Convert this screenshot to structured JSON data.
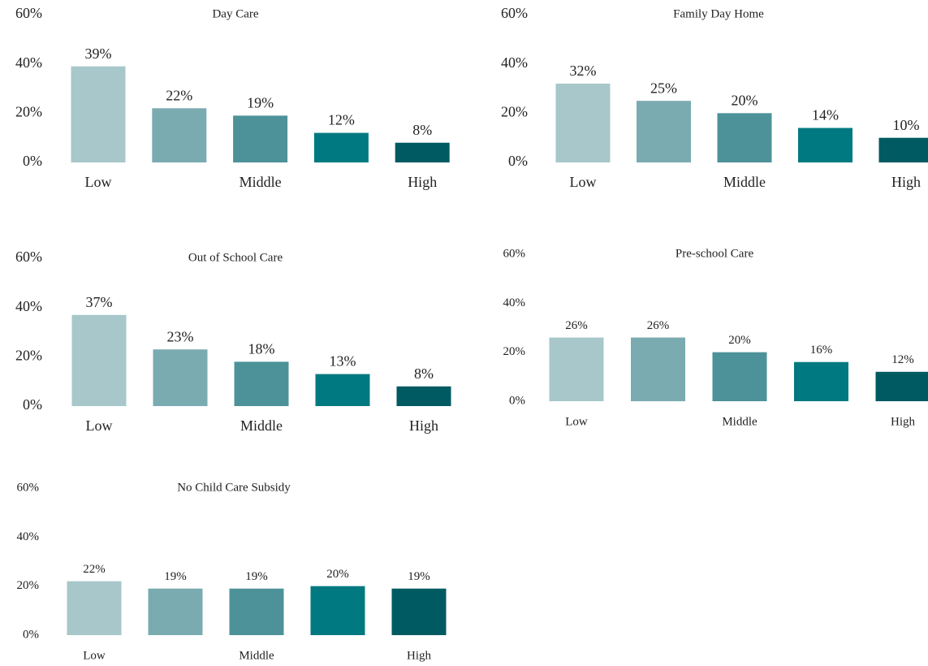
{
  "chart_data": [
    {
      "type": "bar",
      "title": "Day Care",
      "categories": [
        "Low",
        null,
        "Middle",
        null,
        "High"
      ],
      "values": [
        39,
        22,
        19,
        12,
        8
      ],
      "value_labels": [
        "39%",
        "22%",
        "19%",
        "12%",
        "8%"
      ],
      "colors": [
        "#a7c7ca",
        "#7aabb0",
        "#4d9299",
        "#007a80",
        "#005a62"
      ],
      "ylim": [
        0,
        60
      ],
      "yticks": [
        {
          "value": 0,
          "label": "0%"
        },
        {
          "value": 20,
          "label": "20%"
        },
        {
          "value": 40,
          "label": "40%"
        },
        {
          "value": 60,
          "label": "60%"
        }
      ]
    },
    {
      "type": "bar",
      "title": "Family Day Home",
      "categories": [
        "Low",
        null,
        "Middle",
        null,
        "High"
      ],
      "values": [
        32,
        25,
        20,
        14,
        10
      ],
      "value_labels": [
        "32%",
        "25%",
        "20%",
        "14%",
        "10%"
      ],
      "colors": [
        "#a7c7ca",
        "#7aabb0",
        "#4d9299",
        "#007a80",
        "#005a62"
      ],
      "ylim": [
        0,
        60
      ],
      "yticks": [
        {
          "value": 0,
          "label": "0%"
        },
        {
          "value": 20,
          "label": "20%"
        },
        {
          "value": 40,
          "label": "40%"
        },
        {
          "value": 60,
          "label": "60%"
        }
      ]
    },
    {
      "type": "bar",
      "title": "Out of School Care",
      "categories": [
        "Low",
        null,
        "Middle",
        null,
        "High"
      ],
      "values": [
        37,
        23,
        18,
        13,
        8
      ],
      "value_labels": [
        "37%",
        "23%",
        "18%",
        "13%",
        "8%"
      ],
      "colors": [
        "#a7c7ca",
        "#7aabb0",
        "#4d9299",
        "#007a80",
        "#005a62"
      ],
      "ylim": [
        0,
        60
      ],
      "yticks": [
        {
          "value": 0,
          "label": "0%"
        },
        {
          "value": 20,
          "label": "20%"
        },
        {
          "value": 40,
          "label": "40%"
        },
        {
          "value": 60,
          "label": "60%"
        }
      ]
    },
    {
      "type": "bar",
      "title": "Pre-school Care",
      "categories": [
        "Low",
        null,
        "Middle",
        null,
        "High"
      ],
      "values": [
        26,
        26,
        20,
        16,
        12
      ],
      "value_labels": [
        "26%",
        "26%",
        "20%",
        "16%",
        "12%"
      ],
      "colors": [
        "#a7c7ca",
        "#7aabb0",
        "#4d9299",
        "#007a80",
        "#005a62"
      ],
      "ylim": [
        0,
        60
      ],
      "yticks": [
        {
          "value": 0,
          "label": "0%"
        },
        {
          "value": 20,
          "label": "20%"
        },
        {
          "value": 40,
          "label": "40%"
        },
        {
          "value": 60,
          "label": "60%"
        }
      ]
    },
    {
      "type": "bar",
      "title": "No Child Care Subsidy",
      "categories": [
        "Low",
        null,
        "Middle",
        null,
        "High"
      ],
      "values": [
        22,
        19,
        19,
        20,
        19
      ],
      "value_labels": [
        "22%",
        "19%",
        "19%",
        "20%",
        "19%"
      ],
      "colors": [
        "#a7c7ca",
        "#7aabb0",
        "#4d9299",
        "#007a80",
        "#005a62"
      ],
      "ylim": [
        0,
        60
      ],
      "yticks": [
        {
          "value": 0,
          "label": "0%"
        },
        {
          "value": 20,
          "label": "20%"
        },
        {
          "value": 40,
          "label": "40%"
        },
        {
          "value": 60,
          "label": "60%"
        }
      ]
    }
  ]
}
